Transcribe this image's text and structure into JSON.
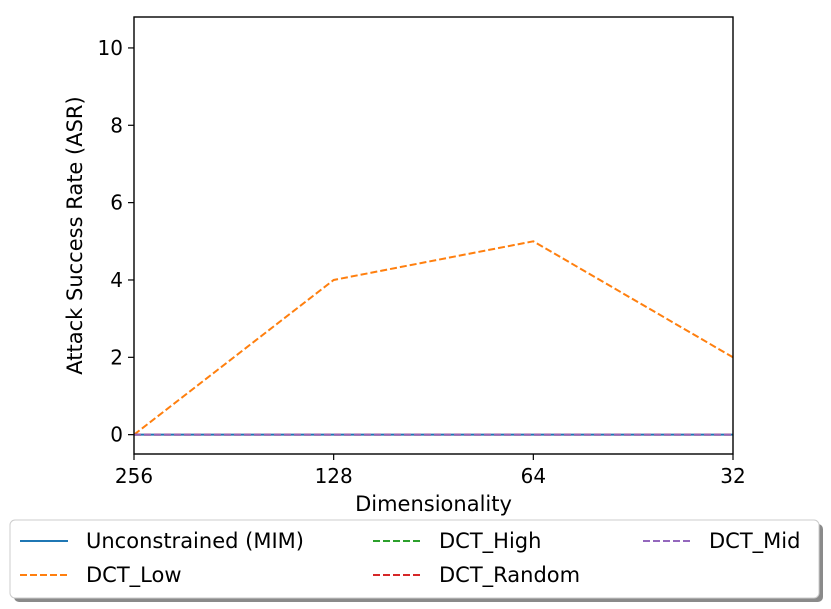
{
  "chart_data": {
    "type": "line",
    "x": [
      256,
      128,
      64,
      32
    ],
    "x_tick_labels": [
      "256",
      "128",
      "64",
      "32"
    ],
    "xlabel": "Dimensionality",
    "ylabel": "Attack Success Rate (ASR)",
    "y_ticks": [
      0,
      2,
      4,
      6,
      8,
      10
    ],
    "y_tick_labels": [
      "0",
      "2",
      "4",
      "6",
      "8",
      "10"
    ],
    "ylim": [
      -0.5,
      10.8
    ],
    "grid": false,
    "legend_position": "bottom",
    "series": [
      {
        "name": "Unconstrained (MIM)",
        "values": [
          0,
          0,
          0,
          0
        ],
        "color": "#1f77b4",
        "dash": "solid"
      },
      {
        "name": "DCT_Low",
        "values": [
          0,
          4,
          5,
          2
        ],
        "color": "#ff7f0e",
        "dash": "dashed"
      },
      {
        "name": "DCT_High",
        "values": [
          0,
          0,
          0,
          0
        ],
        "color": "#2ca02c",
        "dash": "dashed"
      },
      {
        "name": "DCT_Random",
        "values": [
          0,
          0,
          0,
          0
        ],
        "color": "#d62728",
        "dash": "dashed"
      },
      {
        "name": "DCT_Mid",
        "values": [
          0,
          0,
          0,
          0
        ],
        "color": "#9467bd",
        "dash": "dashed"
      }
    ]
  }
}
